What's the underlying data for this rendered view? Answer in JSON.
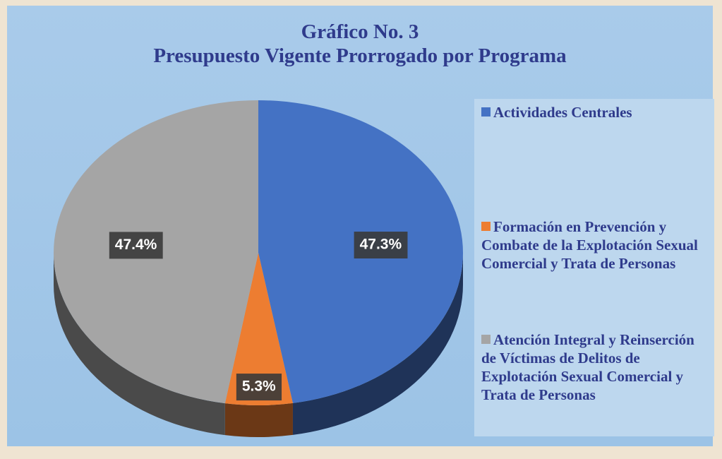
{
  "chart_data": {
    "type": "pie",
    "title": "Gráfico No. 3",
    "subtitle": "Presupuesto Vigente Prorrogado por Programa",
    "categories": [
      "Actividades Centrales",
      "Formación en Prevención y Combate de la Explotación Sexual Comercial y Trata de Personas",
      "Atención Integral y Reinserción de  Víctimas de Delitos de Explotación Sexual Comercial y Trata de Personas"
    ],
    "values": [
      47.3,
      5.3,
      47.4
    ],
    "value_labels": [
      "47.3%",
      "5.3%",
      "47.4%"
    ],
    "colors": [
      "#4472c4",
      "#ed7d31",
      "#a5a5a5"
    ],
    "legend": "right"
  }
}
